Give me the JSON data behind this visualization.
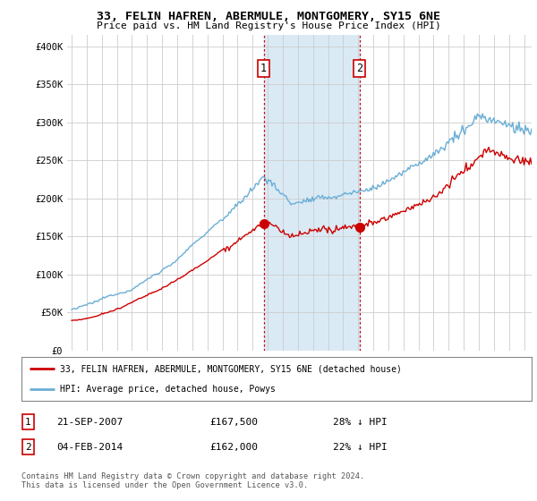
{
  "title": "33, FELIN HAFREN, ABERMULE, MONTGOMERY, SY15 6NE",
  "subtitle": "Price paid vs. HM Land Registry's House Price Index (HPI)",
  "ylabel_ticks": [
    "£0",
    "£50K",
    "£100K",
    "£150K",
    "£200K",
    "£250K",
    "£300K",
    "£350K",
    "£400K"
  ],
  "ytick_values": [
    0,
    50000,
    100000,
    150000,
    200000,
    250000,
    300000,
    350000,
    400000
  ],
  "ylim": [
    0,
    415000
  ],
  "xlim_start": 1994.7,
  "xlim_end": 2025.5,
  "shade_start": 2007.73,
  "shade_end": 2014.09,
  "sale1_x": 2007.73,
  "sale1_y": 167500,
  "sale1_label": "1",
  "sale1_date": "21-SEP-2007",
  "sale1_price": "£167,500",
  "sale1_hpi": "28% ↓ HPI",
  "sale2_x": 2014.09,
  "sale2_y": 162000,
  "sale2_label": "2",
  "sale2_date": "04-FEB-2014",
  "sale2_price": "£162,000",
  "sale2_hpi": "22% ↓ HPI",
  "legend_line1": "33, FELIN HAFREN, ABERMULE, MONTGOMERY, SY15 6NE (detached house)",
  "legend_line2": "HPI: Average price, detached house, Powys",
  "footer": "Contains HM Land Registry data © Crown copyright and database right 2024.\nThis data is licensed under the Open Government Licence v3.0.",
  "hpi_color": "#6aaed6",
  "sale_color": "#cc0000",
  "shade_color": "#daeaf5",
  "vline_color": "#cc0000",
  "grid_color": "#cccccc",
  "background_color": "#ffffff"
}
